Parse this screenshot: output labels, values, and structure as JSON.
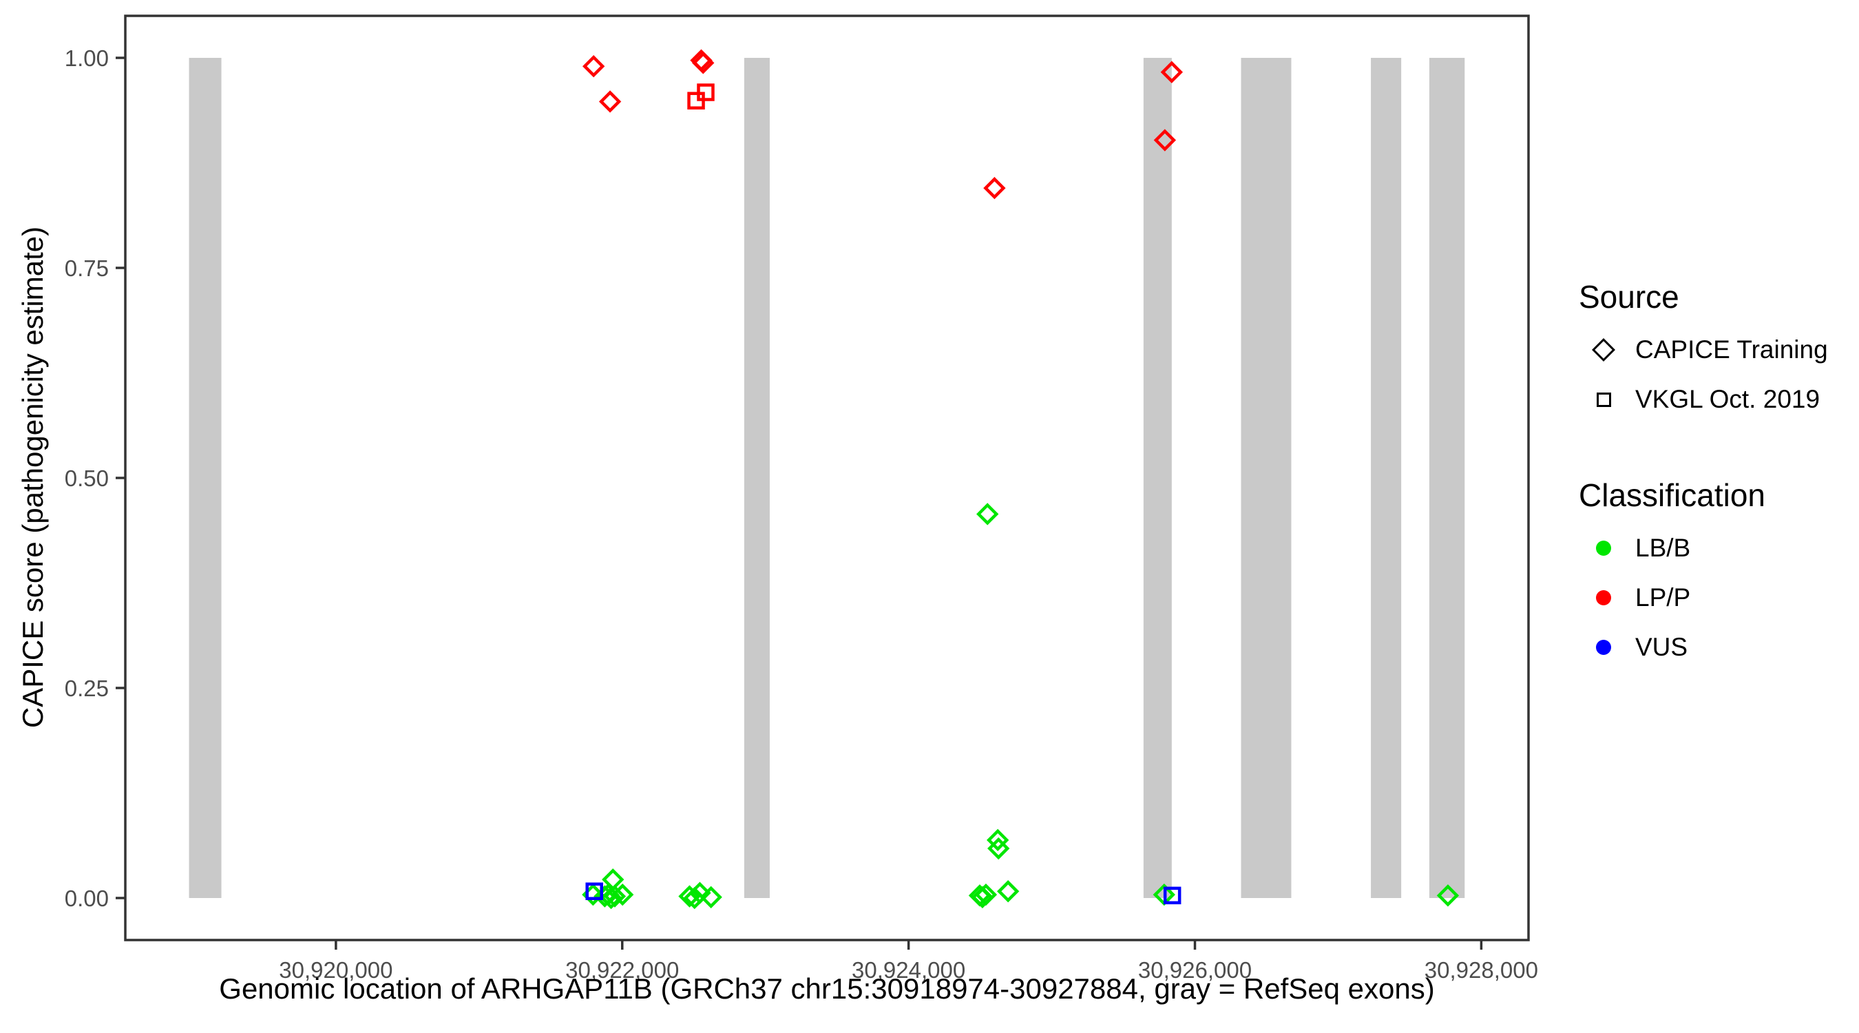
{
  "figure": {
    "x_axis_title": "Genomic location of ARHGAP11B (GRCh37 chr15:30918974-30927884, gray = RefSeq exons)",
    "y_axis_title": "CAPICE score (pathogenicity estimate)"
  },
  "legend": {
    "source": {
      "title": "Source",
      "items": [
        {
          "label": "CAPICE Training",
          "shape": "diamond"
        },
        {
          "label": "VKGL Oct. 2019",
          "shape": "square"
        }
      ]
    },
    "classification": {
      "title": "Classification",
      "items": [
        {
          "label": "LB/B",
          "color": "#00E600"
        },
        {
          "label": "LP/P",
          "color": "#FF0000"
        },
        {
          "label": "VUS",
          "color": "#0000FF"
        }
      ]
    }
  },
  "chart_data": {
    "type": "scatter",
    "title": "",
    "xlabel": "Genomic location of ARHGAP11B (GRCh37 chr15:30918974-30927884, gray = RefSeq exons)",
    "ylabel": "CAPICE score (pathogenicity estimate)",
    "xlim": [
      30918529,
      30928330
    ],
    "ylim": [
      -0.05,
      1.05
    ],
    "grid": false,
    "legend_position": "right",
    "x_ticks": [
      {
        "value": 30920000,
        "label": "30,920,000"
      },
      {
        "value": 30922000,
        "label": "30,922,000"
      },
      {
        "value": 30924000,
        "label": "30,924,000"
      },
      {
        "value": 30926000,
        "label": "30,926,000"
      },
      {
        "value": 30928000,
        "label": "30,928,000"
      }
    ],
    "y_ticks": [
      {
        "value": 1.0,
        "label": "1.00"
      },
      {
        "value": 0.75,
        "label": "0.75"
      },
      {
        "value": 0.5,
        "label": "0.50"
      },
      {
        "value": 0.25,
        "label": "0.25"
      },
      {
        "value": 0.0,
        "label": "0.00"
      }
    ],
    "marker_shapes": {
      "CAPICE Training": "diamond",
      "VKGL Oct. 2019": "square"
    },
    "class_colors": {
      "LB/B": "#00E600",
      "LP/P": "#FF0000",
      "VUS": "#0000FF"
    },
    "exon_color": "#C9C9C9",
    "refseq_exons_bp": [
      [
        30918974,
        30919200
      ],
      [
        30922852,
        30923030
      ],
      [
        30925641,
        30925838
      ],
      [
        30926322,
        30926673
      ],
      [
        30927229,
        30927441
      ],
      [
        30927637,
        30927884
      ]
    ],
    "points": [
      {
        "x": 30921800,
        "y": 0.99,
        "source": "CAPICE Training",
        "classification": "LP/P"
      },
      {
        "x": 30921915,
        "y": 0.948,
        "source": "CAPICE Training",
        "classification": "LP/P"
      },
      {
        "x": 30922552,
        "y": 0.997,
        "source": "CAPICE Training",
        "classification": "LP/P"
      },
      {
        "x": 30922565,
        "y": 0.994,
        "source": "CAPICE Training",
        "classification": "LP/P"
      },
      {
        "x": 30922583,
        "y": 0.959,
        "source": "VKGL Oct. 2019",
        "classification": "LP/P"
      },
      {
        "x": 30922516,
        "y": 0.949,
        "source": "VKGL Oct. 2019",
        "classification": "LP/P"
      },
      {
        "x": 30924600,
        "y": 0.845,
        "source": "CAPICE Training",
        "classification": "LP/P"
      },
      {
        "x": 30925838,
        "y": 0.983,
        "source": "CAPICE Training",
        "classification": "LP/P"
      },
      {
        "x": 30925790,
        "y": 0.902,
        "source": "CAPICE Training",
        "classification": "LP/P"
      },
      {
        "x": 30924551,
        "y": 0.457,
        "source": "CAPICE Training",
        "classification": "LB/B"
      },
      {
        "x": 30924623,
        "y": 0.069,
        "source": "CAPICE Training",
        "classification": "LB/B"
      },
      {
        "x": 30924628,
        "y": 0.059,
        "source": "CAPICE Training",
        "classification": "LB/B"
      },
      {
        "x": 30924497,
        "y": 0.003,
        "source": "CAPICE Training",
        "classification": "LB/B"
      },
      {
        "x": 30924516,
        "y": 0.001,
        "source": "CAPICE Training",
        "classification": "LB/B"
      },
      {
        "x": 30924540,
        "y": 0.004,
        "source": "CAPICE Training",
        "classification": "LB/B"
      },
      {
        "x": 30924695,
        "y": 0.008,
        "source": "CAPICE Training",
        "classification": "LB/B"
      },
      {
        "x": 30921796,
        "y": 0.004,
        "source": "CAPICE Training",
        "classification": "LB/B"
      },
      {
        "x": 30921935,
        "y": 0.022,
        "source": "CAPICE Training",
        "classification": "LB/B"
      },
      {
        "x": 30921878,
        "y": 0.002,
        "source": "CAPICE Training",
        "classification": "LB/B"
      },
      {
        "x": 30921902,
        "y": 0.004,
        "source": "CAPICE Training",
        "classification": "LB/B"
      },
      {
        "x": 30921922,
        "y": 0.0,
        "source": "CAPICE Training",
        "classification": "LB/B"
      },
      {
        "x": 30921948,
        "y": 0.002,
        "source": "CAPICE Training",
        "classification": "LB/B"
      },
      {
        "x": 30922002,
        "y": 0.004,
        "source": "CAPICE Training",
        "classification": "LB/B"
      },
      {
        "x": 30922470,
        "y": 0.002,
        "source": "CAPICE Training",
        "classification": "LB/B"
      },
      {
        "x": 30922505,
        "y": 0.0,
        "source": "CAPICE Training",
        "classification": "LB/B"
      },
      {
        "x": 30922542,
        "y": 0.006,
        "source": "CAPICE Training",
        "classification": "LB/B"
      },
      {
        "x": 30922620,
        "y": 0.001,
        "source": "CAPICE Training",
        "classification": "LB/B"
      },
      {
        "x": 30925785,
        "y": 0.004,
        "source": "CAPICE Training",
        "classification": "LB/B"
      },
      {
        "x": 30927767,
        "y": 0.003,
        "source": "CAPICE Training",
        "classification": "LB/B"
      },
      {
        "x": 30921805,
        "y": 0.008,
        "source": "VKGL Oct. 2019",
        "classification": "VUS"
      },
      {
        "x": 30925842,
        "y": 0.003,
        "source": "VKGL Oct. 2019",
        "classification": "VUS"
      }
    ]
  }
}
